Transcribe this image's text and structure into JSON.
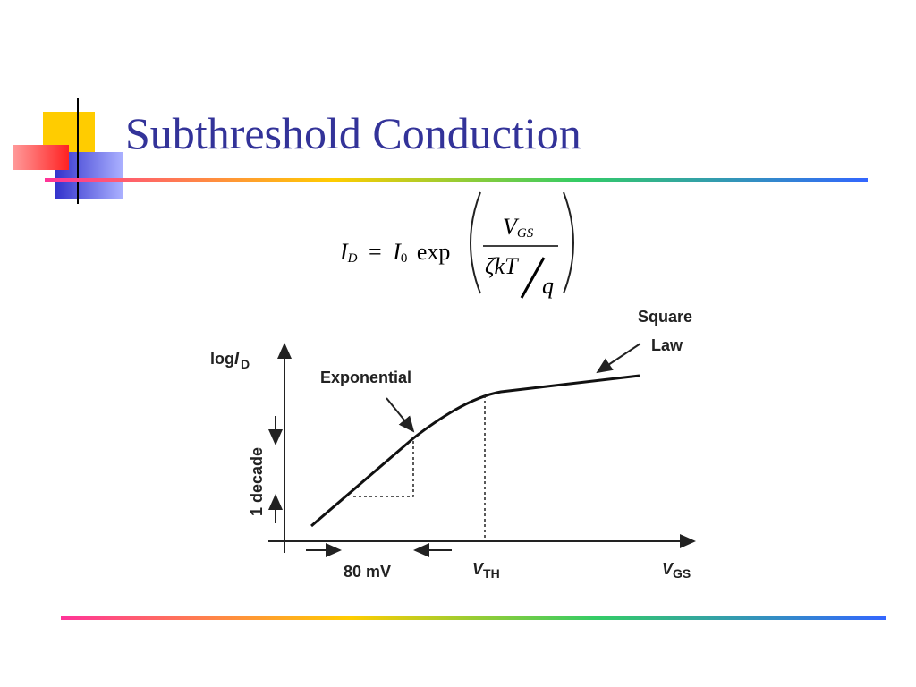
{
  "header": {
    "title": "Subthreshold Conduction"
  },
  "equation": {
    "lhs": "I",
    "lhs_sub": "D",
    "equals": "=",
    "i0": "I",
    "i0_sub": "0",
    "func": "exp",
    "numerator": "V",
    "numerator_sub": "GS",
    "denominator": "ζkT",
    "denominator_q": "q"
  },
  "figure": {
    "y_axis": "log",
    "y_axis_var": "I",
    "y_axis_sub": "D",
    "exponential": "Exponential",
    "square_law": [
      "Square",
      "Law"
    ],
    "decade": "1 decade",
    "step": "80 mV",
    "vth": "V",
    "vth_sub": "TH",
    "x_axis": "V",
    "x_axis_sub": "GS"
  }
}
